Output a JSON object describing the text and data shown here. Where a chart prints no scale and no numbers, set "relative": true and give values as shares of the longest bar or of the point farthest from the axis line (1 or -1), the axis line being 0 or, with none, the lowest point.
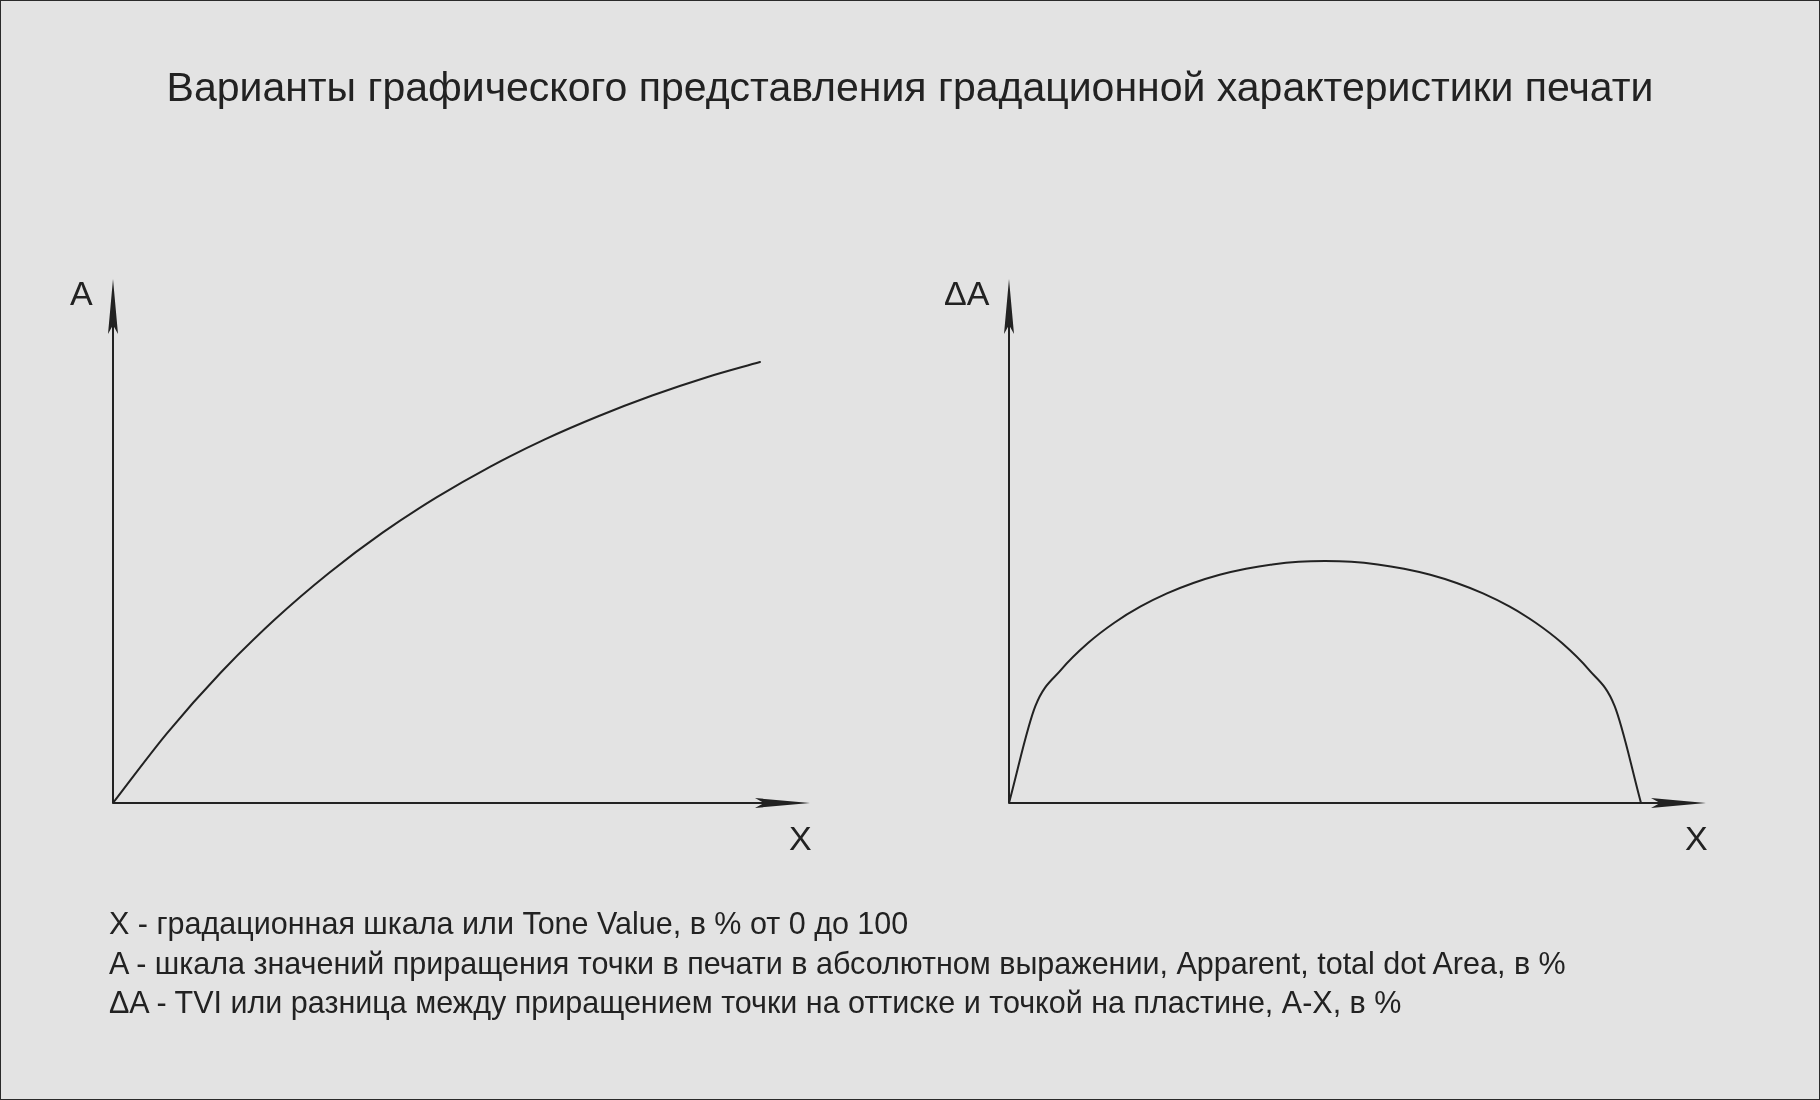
{
  "chart_data": [
    {
      "type": "line",
      "title": "Варианты графического представления градационной характеристики печати",
      "annotations": [
        "X - градационная шкала или Tone Value, в % от 0 до 100",
        "A - шкала значений приращения точки в печати в абсолютном выражении, Apparent, total dot Area, в %",
        "ΔA - TVI или разница между приращением точки на оттиске и точкой на пластине, A-X, в %"
      ],
      "xlabel": "X",
      "ylabel": "A",
      "relative": true,
      "marker": "none",
      "line_style": "solid",
      "color": "#222222",
      "categories": [
        null,
        null,
        null,
        null,
        null,
        null,
        null,
        null,
        null,
        null,
        null,
        null,
        null
      ],
      "values": [
        0,
        0.158,
        0.296,
        0.416,
        0.521,
        0.613,
        0.693,
        0.763,
        0.824,
        0.877,
        0.924,
        0.965,
        1
      ]
    },
    {
      "type": "line",
      "xlabel": "X",
      "ylabel": "ΔA",
      "relative": true,
      "marker": "none",
      "line_style": "solid",
      "color": "#222222",
      "categories": [
        null,
        null,
        null,
        null,
        null,
        null,
        null,
        null,
        null,
        null,
        null,
        null,
        null,
        null,
        null,
        null,
        null,
        null,
        null,
        null,
        null,
        null,
        null,
        null,
        null
      ],
      "values": [
        0,
        0.4,
        0.553,
        0.661,
        0.745,
        0.812,
        0.866,
        0.909,
        0.943,
        0.968,
        0.986,
        0.997,
        1,
        0.997,
        0.986,
        0.968,
        0.943,
        0.909,
        0.866,
        0.812,
        0.745,
        0.661,
        0.553,
        0.4,
        0
      ]
    }
  ]
}
